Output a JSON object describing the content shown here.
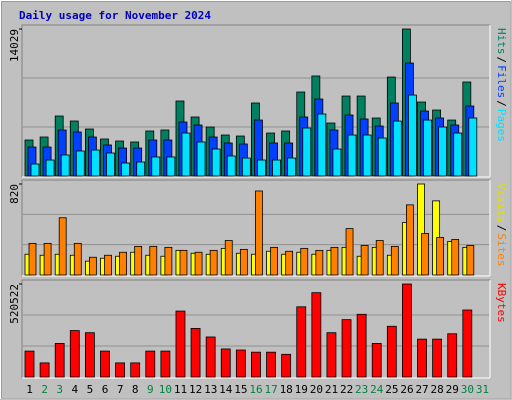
{
  "title": "Daily usage for November 2024",
  "legend_separator": "/",
  "chart_data": [
    {
      "type": "bar",
      "ylim": [
        0,
        14029
      ],
      "yticks": [
        14029
      ],
      "series": [
        {
          "name": "Hits",
          "color": "#008060",
          "values": [
            3435,
            3721,
            5725,
            5248,
            4485,
            3530,
            3340,
            3245,
            4295,
            4390,
            7156,
            5630,
            4675,
            3910,
            3815,
            6965,
            4100,
            4295,
            8015,
            9545,
            5055,
            7630,
            7630,
            5535,
            9445,
            14029,
            7060,
            6295,
            5340,
            8970,
            null
          ]
        },
        {
          "name": "Files",
          "color": "#0040ff",
          "values": [
            2765,
            2765,
            4390,
            4200,
            3720,
            2960,
            2670,
            2670,
            3435,
            3435,
            5150,
            4865,
            3720,
            3150,
            3055,
            5340,
            3150,
            3150,
            5630,
            7345,
            4390,
            5820,
            5440,
            4770,
            6965,
            10780,
            6200,
            5535,
            4865,
            6680,
            null
          ]
        },
        {
          "name": "Pages",
          "color": "#00e0ff",
          "values": [
            1145,
            1525,
            2005,
            2385,
            2480,
            2195,
            1240,
            1335,
            1815,
            1815,
            4100,
            3245,
            2575,
            1910,
            1715,
            1525,
            1525,
            1715,
            4580,
            5915,
            2575,
            3910,
            3910,
            3625,
            5245,
            7725,
            5340,
            4675,
            4100,
            5535,
            null
          ]
        }
      ]
    },
    {
      "type": "bar",
      "ylim": [
        0,
        820
      ],
      "yticks": [
        820
      ],
      "series": [
        {
          "name": "Visits",
          "color": "#ffff00",
          "values": [
            187,
            178,
            187,
            178,
            125,
            151,
            169,
            205,
            178,
            169,
            222,
            196,
            187,
            240,
            196,
            187,
            214,
            187,
            205,
            187,
            222,
            249,
            169,
            249,
            178,
            472,
            820,
            668,
            303,
            249,
            null
          ]
        },
        {
          "name": "Sites",
          "color": "#ff8000",
          "values": [
            285,
            285,
            516,
            285,
            160,
            178,
            205,
            258,
            258,
            249,
            222,
            205,
            222,
            311,
            231,
            757,
            249,
            214,
            240,
            222,
            249,
            418,
            267,
            311,
            258,
            632,
            374,
            338,
            320,
            267,
            null
          ]
        }
      ]
    },
    {
      "type": "bar",
      "ylim": [
        0,
        520522
      ],
      "yticks": [
        520522
      ],
      "series": [
        {
          "name": "KBytes",
          "color": "#ff0000",
          "values": [
            145000,
            79000,
            188000,
            260000,
            248000,
            145000,
            79000,
            79000,
            145000,
            145000,
            369000,
            272000,
            224000,
            157000,
            151000,
            139000,
            139000,
            127000,
            393000,
            472000,
            248000,
            321000,
            351000,
            188000,
            284000,
            520522,
            212000,
            212000,
            242000,
            375000,
            null
          ]
        }
      ],
      "categories": [
        "1",
        "2",
        "3",
        "4",
        "5",
        "6",
        "7",
        "8",
        "9",
        "10",
        "11",
        "12",
        "13",
        "14",
        "15",
        "16",
        "17",
        "18",
        "19",
        "20",
        "21",
        "22",
        "23",
        "24",
        "25",
        "26",
        "27",
        "28",
        "29",
        "30",
        "31"
      ],
      "category_colors": [
        "#000",
        "#008040",
        "#008040",
        "#000",
        "#000",
        "#000",
        "#000",
        "#000",
        "#008040",
        "#008040",
        "#000",
        "#000",
        "#000",
        "#000",
        "#000",
        "#008040",
        "#008040",
        "#000",
        "#000",
        "#000",
        "#000",
        "#000",
        "#008040",
        "#008040",
        "#000",
        "#000",
        "#000",
        "#000",
        "#000",
        "#008040",
        "#008040"
      ]
    }
  ]
}
